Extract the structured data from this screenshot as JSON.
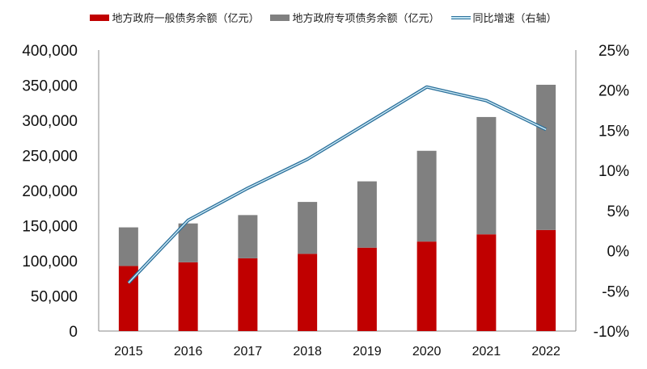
{
  "chart_data": {
    "type": "bar",
    "stacked": true,
    "categories": [
      "2015",
      "2016",
      "2017",
      "2018",
      "2019",
      "2020",
      "2021",
      "2022"
    ],
    "series": [
      {
        "name": "地方政府一般债务余额（亿元）",
        "type": "bar",
        "axis": "left",
        "color": "#c00000",
        "values": [
          92600,
          97900,
          103600,
          109900,
          118700,
          127400,
          137700,
          143900
        ]
      },
      {
        "name": "地方政府专项债务余额（亿元）",
        "type": "bar",
        "axis": "left",
        "color": "#808080",
        "values": [
          55000,
          55300,
          61500,
          73900,
          94400,
          129200,
          167000,
          206700
        ]
      },
      {
        "name": "同比增速（右轴）",
        "type": "line",
        "axis": "right",
        "color": "#2a6f9a",
        "values": [
          -4.0,
          3.8,
          7.8,
          11.4,
          15.9,
          20.4,
          18.7,
          15.1
        ]
      }
    ],
    "left_axis": {
      "ylim": [
        0,
        400000
      ],
      "ticks": [
        "0",
        "50,000",
        "100,000",
        "150,000",
        "200,000",
        "250,000",
        "300,000",
        "350,000",
        "400,000"
      ]
    },
    "right_axis": {
      "ylim": [
        -10,
        25
      ],
      "ticks": [
        "-10%",
        "-5%",
        "0%",
        "5%",
        "10%",
        "15%",
        "20%",
        "25%"
      ]
    },
    "grid": false,
    "legend": "top"
  }
}
